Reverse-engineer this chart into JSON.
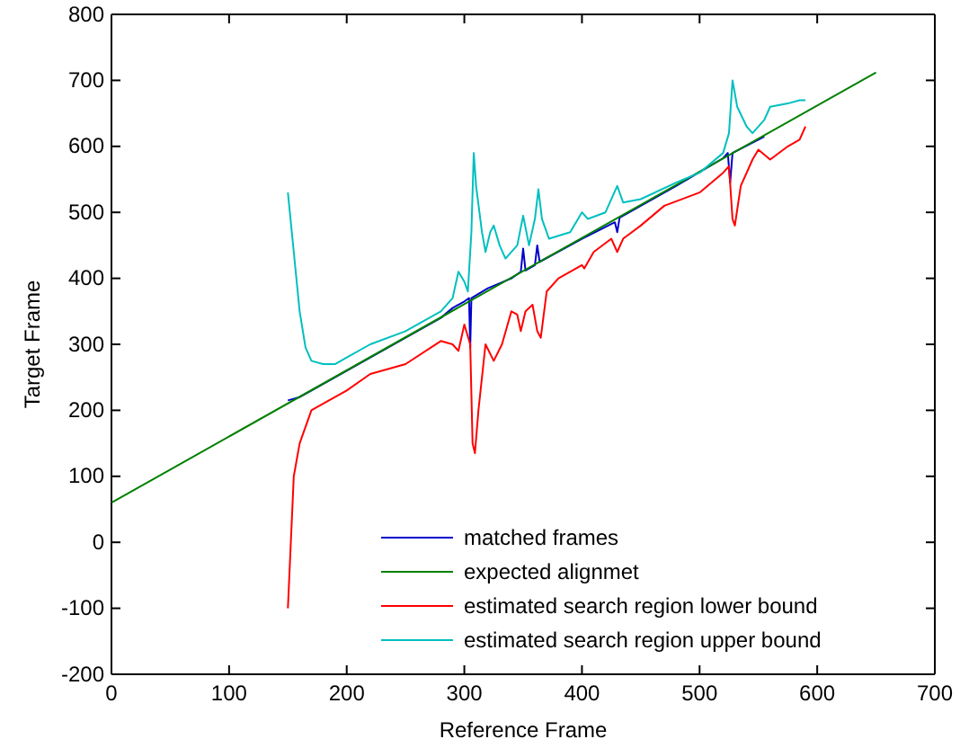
{
  "chart_data": {
    "type": "line",
    "xlabel": "Reference Frame",
    "ylabel": "Target Frame",
    "xlim": [
      0,
      700
    ],
    "ylim": [
      -200,
      800
    ],
    "xticks": [
      0,
      100,
      200,
      300,
      400,
      500,
      600,
      700
    ],
    "yticks": [
      -200,
      -100,
      0,
      100,
      200,
      300,
      400,
      500,
      600,
      700,
      800
    ],
    "grid": false,
    "legend": "bottom right",
    "marker": "none",
    "line_style": "solid",
    "series": [
      {
        "name": "matched frames",
        "color": "#0000cc",
        "x": [
          150,
          160,
          170,
          200,
          250,
          280,
          290,
          300,
          304,
          305,
          306,
          320,
          340,
          348,
          350,
          352,
          360,
          362,
          364,
          400,
          428,
          430,
          432,
          480,
          520,
          524,
          526,
          528,
          550,
          555
        ],
        "values": [
          215,
          220,
          230,
          260,
          310,
          340,
          355,
          365,
          370,
          295,
          370,
          385,
          400,
          410,
          445,
          412,
          420,
          450,
          425,
          460,
          485,
          470,
          492,
          540,
          582,
          590,
          545,
          590,
          610,
          615
        ]
      },
      {
        "name": "expected alignmet",
        "color": "#008000",
        "x": [
          0,
          650
        ],
        "values": [
          60,
          712
        ]
      },
      {
        "name": "estimated search region lower bound",
        "color": "#ff0000",
        "x": [
          150,
          155,
          160,
          170,
          175,
          200,
          220,
          250,
          280,
          290,
          295,
          300,
          305,
          307,
          309,
          312,
          318,
          325,
          332,
          340,
          345,
          348,
          352,
          358,
          362,
          365,
          370,
          380,
          400,
          402,
          410,
          425,
          430,
          435,
          450,
          470,
          500,
          520,
          525,
          528,
          530,
          535,
          545,
          550,
          560,
          575,
          585,
          590
        ],
        "values": [
          -100,
          100,
          150,
          200,
          205,
          230,
          255,
          270,
          305,
          300,
          290,
          330,
          300,
          150,
          135,
          200,
          300,
          275,
          300,
          350,
          345,
          320,
          350,
          360,
          320,
          310,
          380,
          400,
          420,
          415,
          440,
          460,
          440,
          460,
          480,
          510,
          530,
          560,
          570,
          490,
          480,
          540,
          580,
          595,
          580,
          600,
          610,
          630
        ]
      },
      {
        "name": "estimated search region upper bound",
        "color": "#00bfbf",
        "x": [
          150,
          155,
          160,
          165,
          170,
          180,
          190,
          200,
          220,
          250,
          280,
          290,
          295,
          300,
          303,
          306,
          308,
          310,
          315,
          318,
          322,
          325,
          330,
          335,
          345,
          350,
          355,
          360,
          363,
          366,
          372,
          390,
          400,
          405,
          420,
          430,
          435,
          450,
          480,
          500,
          520,
          525,
          528,
          532,
          540,
          545,
          555,
          560,
          575,
          585,
          590
        ],
        "values": [
          530,
          440,
          350,
          295,
          275,
          270,
          270,
          280,
          300,
          320,
          350,
          370,
          410,
          395,
          380,
          470,
          590,
          540,
          470,
          440,
          470,
          480,
          450,
          430,
          450,
          495,
          450,
          490,
          535,
          490,
          460,
          470,
          500,
          490,
          500,
          540,
          515,
          520,
          545,
          560,
          590,
          620,
          700,
          660,
          630,
          620,
          640,
          660,
          665,
          670,
          670
        ]
      }
    ]
  }
}
